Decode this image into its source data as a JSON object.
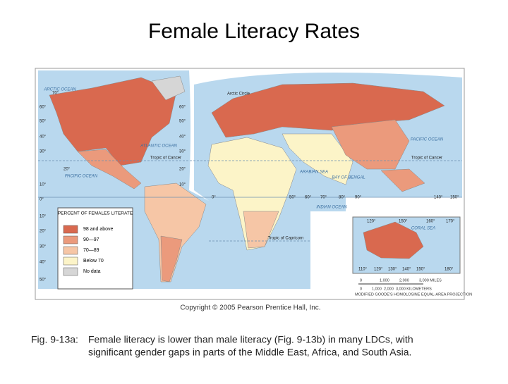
{
  "header": {
    "title": "Female Literacy Rates"
  },
  "map": {
    "ocean_labels": [
      "ARCTIC OCEAN",
      "ATLANTIC OCEAN",
      "PACIFIC OCEAN",
      "PACIFIC OCEAN",
      "INDIAN OCEAN",
      "ARABIAN SEA",
      "BAY OF BENGAL",
      "CORAL SEA"
    ],
    "line_labels": [
      "Arctic Circle",
      "Tropic of Cancer",
      "Tropic of Cancer",
      "Tropic of Capricorn"
    ],
    "degree_labels": [
      "70°",
      "60°",
      "50°",
      "40°",
      "30°",
      "20°",
      "10°",
      "0°",
      "10°",
      "20°",
      "30°",
      "40°",
      "50°",
      "60°",
      "50°",
      "40°",
      "30°",
      "20°",
      "10°",
      "0°",
      "50°",
      "60°",
      "70°",
      "80°",
      "90°",
      "140°",
      "150°",
      "120°",
      "150°",
      "160°",
      "170°",
      "110°",
      "120°",
      "130°",
      "140°",
      "150°",
      "180°"
    ],
    "legend": {
      "title": "PERCENT OF FEMALES LITERATE",
      "items": [
        {
          "label": "98 and above",
          "color": "#d9694f"
        },
        {
          "label": "90—97",
          "color": "#eb9a7c"
        },
        {
          "label": "70—89",
          "color": "#f6c6a6"
        },
        {
          "label": "Below 70",
          "color": "#fcf4c8"
        },
        {
          "label": "No data",
          "color": "#d6d6d6"
        }
      ]
    },
    "scale": {
      "miles": [
        "0",
        "1,000",
        "2,000",
        "3,000 MILES"
      ],
      "kilometers": [
        "0",
        "1,000",
        "2,000",
        "3,000 KILOMETERS"
      ]
    },
    "projection": "MODIFIED GOODE'S HOMOLOSINE EQUAL-AREA PROJECTION"
  },
  "copyright": "Copyright © 2005 Pearson Prentice Hall, Inc.",
  "caption": {
    "label": "Fig. 9-13a:",
    "lines": [
      "Female literacy is lower than male literacy (Fig. 9-13b) in many LDCs, with",
      "significant gender gaps in parts of the Middle East, Africa, and South Asia."
    ]
  }
}
